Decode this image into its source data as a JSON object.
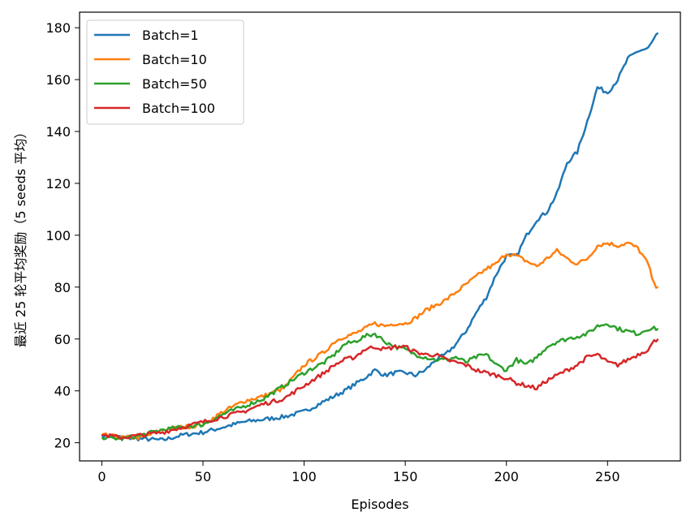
{
  "chart_data": {
    "type": "line",
    "xlabel": "Episodes",
    "ylabel": "最近 25 轮平均奖励（5 seeds 平均）",
    "xlim": [
      -11,
      286
    ],
    "ylim": [
      13,
      186
    ],
    "xticks": [
      0,
      50,
      100,
      150,
      200,
      250
    ],
    "yticks": [
      20,
      40,
      60,
      80,
      100,
      120,
      140,
      160,
      180
    ],
    "grid": false,
    "legend_position": "upper-left",
    "series": [
      {
        "name": "Batch=1",
        "color": "#1f77b4",
        "points": [
          [
            0,
            23
          ],
          [
            10,
            22
          ],
          [
            20,
            21.5
          ],
          [
            30,
            21
          ],
          [
            40,
            23
          ],
          [
            50,
            24
          ],
          [
            60,
            26
          ],
          [
            70,
            28
          ],
          [
            80,
            29
          ],
          [
            90,
            30
          ],
          [
            100,
            32
          ],
          [
            110,
            36
          ],
          [
            120,
            40
          ],
          [
            130,
            45
          ],
          [
            135,
            48
          ],
          [
            140,
            46
          ],
          [
            145,
            47
          ],
          [
            150,
            47
          ],
          [
            155,
            46
          ],
          [
            160,
            48
          ],
          [
            165,
            52
          ],
          [
            170,
            54
          ],
          [
            175,
            58
          ],
          [
            180,
            63
          ],
          [
            185,
            70
          ],
          [
            190,
            76
          ],
          [
            195,
            85
          ],
          [
            200,
            92
          ],
          [
            205,
            92
          ],
          [
            210,
            100
          ],
          [
            215,
            106
          ],
          [
            220,
            109
          ],
          [
            225,
            116
          ],
          [
            230,
            128
          ],
          [
            235,
            132
          ],
          [
            240,
            144
          ],
          [
            245,
            157
          ],
          [
            250,
            155
          ],
          [
            255,
            160
          ],
          [
            260,
            168
          ],
          [
            265,
            171
          ],
          [
            270,
            172
          ],
          [
            275,
            178
          ]
        ]
      },
      {
        "name": "Batch=10",
        "color": "#ff7f0e",
        "points": [
          [
            0,
            23
          ],
          [
            10,
            22
          ],
          [
            20,
            22
          ],
          [
            30,
            25
          ],
          [
            40,
            26
          ],
          [
            50,
            27
          ],
          [
            60,
            32
          ],
          [
            70,
            36
          ],
          [
            80,
            38
          ],
          [
            90,
            41
          ],
          [
            100,
            50
          ],
          [
            110,
            55
          ],
          [
            115,
            59
          ],
          [
            120,
            61
          ],
          [
            125,
            62
          ],
          [
            130,
            64
          ],
          [
            135,
            66
          ],
          [
            140,
            65
          ],
          [
            145,
            66
          ],
          [
            150,
            66
          ],
          [
            155,
            68
          ],
          [
            160,
            71
          ],
          [
            165,
            73
          ],
          [
            170,
            75
          ],
          [
            175,
            78
          ],
          [
            180,
            81
          ],
          [
            185,
            84
          ],
          [
            190,
            87
          ],
          [
            195,
            89
          ],
          [
            200,
            93
          ],
          [
            205,
            92
          ],
          [
            210,
            90
          ],
          [
            215,
            88
          ],
          [
            220,
            91
          ],
          [
            225,
            94
          ],
          [
            230,
            91
          ],
          [
            235,
            89
          ],
          [
            240,
            91
          ],
          [
            245,
            96
          ],
          [
            250,
            97
          ],
          [
            255,
            96
          ],
          [
            260,
            97
          ],
          [
            265,
            95
          ],
          [
            270,
            89
          ],
          [
            273,
            81
          ],
          [
            275,
            80
          ]
        ]
      },
      {
        "name": "Batch=50",
        "color": "#2ca02c",
        "points": [
          [
            0,
            22
          ],
          [
            10,
            21.5
          ],
          [
            20,
            23
          ],
          [
            30,
            25
          ],
          [
            40,
            26
          ],
          [
            50,
            27
          ],
          [
            60,
            31
          ],
          [
            70,
            34
          ],
          [
            80,
            37
          ],
          [
            90,
            42
          ],
          [
            100,
            47
          ],
          [
            110,
            51
          ],
          [
            115,
            54
          ],
          [
            120,
            58
          ],
          [
            125,
            59
          ],
          [
            130,
            61
          ],
          [
            135,
            62
          ],
          [
            140,
            59
          ],
          [
            145,
            57
          ],
          [
            150,
            56
          ],
          [
            155,
            54
          ],
          [
            160,
            53
          ],
          [
            165,
            52
          ],
          [
            170,
            52
          ],
          [
            175,
            53
          ],
          [
            180,
            51
          ],
          [
            185,
            53
          ],
          [
            190,
            54
          ],
          [
            195,
            50
          ],
          [
            200,
            48
          ],
          [
            205,
            52
          ],
          [
            210,
            50
          ],
          [
            215,
            53
          ],
          [
            220,
            57
          ],
          [
            225,
            59
          ],
          [
            230,
            60
          ],
          [
            235,
            61
          ],
          [
            240,
            62
          ],
          [
            245,
            65
          ],
          [
            250,
            66
          ],
          [
            255,
            64
          ],
          [
            260,
            63
          ],
          [
            265,
            62
          ],
          [
            270,
            64
          ],
          [
            275,
            64
          ]
        ]
      },
      {
        "name": "Batch=100",
        "color": "#d62728",
        "points": [
          [
            0,
            23
          ],
          [
            10,
            22
          ],
          [
            20,
            23
          ],
          [
            30,
            24
          ],
          [
            40,
            26
          ],
          [
            50,
            28
          ],
          [
            60,
            30
          ],
          [
            70,
            32
          ],
          [
            80,
            35
          ],
          [
            90,
            37
          ],
          [
            100,
            42
          ],
          [
            110,
            47
          ],
          [
            115,
            50
          ],
          [
            120,
            52
          ],
          [
            125,
            53
          ],
          [
            130,
            56
          ],
          [
            135,
            57
          ],
          [
            140,
            56
          ],
          [
            145,
            57
          ],
          [
            150,
            57
          ],
          [
            155,
            55
          ],
          [
            160,
            54
          ],
          [
            165,
            54
          ],
          [
            170,
            52
          ],
          [
            175,
            51
          ],
          [
            180,
            50
          ],
          [
            185,
            48
          ],
          [
            190,
            47
          ],
          [
            195,
            46
          ],
          [
            200,
            45
          ],
          [
            205,
            43
          ],
          [
            210,
            42
          ],
          [
            215,
            41
          ],
          [
            220,
            44
          ],
          [
            225,
            46
          ],
          [
            230,
            48
          ],
          [
            235,
            50
          ],
          [
            240,
            53
          ],
          [
            245,
            54
          ],
          [
            250,
            51
          ],
          [
            255,
            50
          ],
          [
            260,
            52
          ],
          [
            265,
            54
          ],
          [
            270,
            56
          ],
          [
            273,
            59
          ],
          [
            275,
            60
          ]
        ]
      }
    ]
  }
}
